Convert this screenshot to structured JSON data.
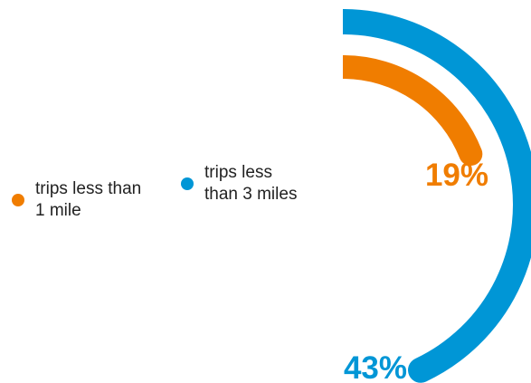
{
  "chart_data": {
    "type": "radial-bar",
    "unit": "%",
    "max": 100,
    "series": [
      {
        "name": "trips less than 1 mile",
        "value": 19,
        "label": "19%",
        "color": "#f07d00"
      },
      {
        "name": "trips less than 3 miles",
        "value": 43,
        "label": "43%",
        "color": "#0096d6"
      }
    ],
    "legend": {
      "position": "left",
      "items": [
        {
          "label": "trips less than 1 mile",
          "color": "#f07d00"
        },
        {
          "label": "trips less than 3 miles",
          "color": "#0096d6"
        }
      ]
    }
  }
}
